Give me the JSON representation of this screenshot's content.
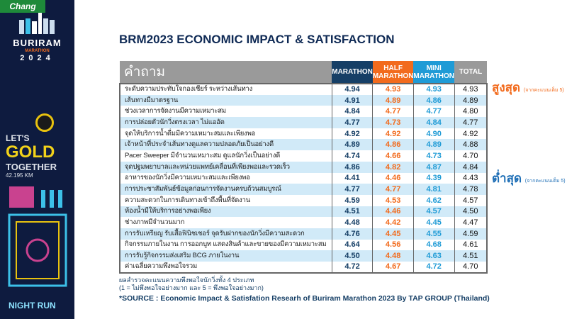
{
  "sidebar": {
    "brand": "BURIRAM",
    "brand_sub": "MARATHON",
    "year": "2024",
    "sponsor": "Chang",
    "slogan1": "LET'S",
    "slogan2": "GOLD",
    "slogan3": "TOGETHER",
    "distance": "42.195 KM",
    "night": "NIGHT RUN"
  },
  "title": "BRM2023 ECONOMIC IMPACT & SATISFACTION",
  "table": {
    "headers": {
      "question": "คำถาม",
      "marathon": "MARATHON",
      "half": "HALF MARATHON",
      "mini": "MINI MARATHON",
      "total": "TOTAL"
    },
    "rows": [
      {
        "q": "ระดับความประทับใจกองเชียร์ ระหว่างเส้นทาง",
        "m": "4.94",
        "h": "4.93",
        "n": "4.93",
        "t": "4.93"
      },
      {
        "q": "เส้นทางมีมาตรฐาน",
        "m": "4.91",
        "h": "4.89",
        "n": "4.86",
        "t": "4.89"
      },
      {
        "q": "ช่วงเวลาการจัดงานมีความเหมาะสม",
        "m": "4.84",
        "h": "4.77",
        "n": "4.77",
        "t": "4.80"
      },
      {
        "q": "การปล่อยตัวนักวิ่งตรงเวลา ไม่แออัด",
        "m": "4.77",
        "h": "4.73",
        "n": "4.84",
        "t": "4.77"
      },
      {
        "q": "จุดให้บริการน้ำดื่มมีความเหมาะสมและเพียงพอ",
        "m": "4.92",
        "h": "4.92",
        "n": "4.90",
        "t": "4.92"
      },
      {
        "q": "เจ้าหน้าที่ประจำเส้นทางดูแลความปลอดภัยเป็นอย่างดี",
        "m": "4.89",
        "h": "4.86",
        "n": "4.89",
        "t": "4.88"
      },
      {
        "q": "Pacer Sweeper มีจำนวนเหมาะสม ดูแลนักวิ่งเป็นอย่างดี",
        "m": "4.74",
        "h": "4.66",
        "n": "4.73",
        "t": "4.70"
      },
      {
        "q": "จุดปฐมพยาบาลและหน่วยแพทย์เคลื่อนที่เพียงพอและรวดเร็ว",
        "m": "4.86",
        "h": "4.82",
        "n": "4.87",
        "t": "4.84"
      },
      {
        "q": "อาหารของนักวิ่งมีความเหมาะสมและเพียงพอ",
        "m": "4.41",
        "h": "4.46",
        "n": "4.39",
        "t": "4.43"
      },
      {
        "q": "การประชาสัมพันธ์ข้อมูลก่อนการจัดงานครบถ้วนสมบูรณ์",
        "m": "4.77",
        "h": "4.77",
        "n": "4.81",
        "t": "4.78"
      },
      {
        "q": "ความสะดวกในการเดินทางเข้าถึงพื้นที่จัดงาน",
        "m": "4.59",
        "h": "4.53",
        "n": "4.62",
        "t": "4.57"
      },
      {
        "q": "ห้องน้ำมีให้บริการอย่างพอเพียง",
        "m": "4.51",
        "h": "4.46",
        "n": "4.57",
        "t": "4.50"
      },
      {
        "q": "ช่างภาพมีจำนวนมาก",
        "m": "4.48",
        "h": "4.42",
        "n": "4.45",
        "t": "4.47"
      },
      {
        "q": "การรับเหรียญ รับเสื้อฟินิชเชอร์ จุดรับฝากของนักวิ่งมีความสะดวก",
        "m": "4.76",
        "h": "4.45",
        "n": "4.55",
        "t": "4.59"
      },
      {
        "q": "กิจกรรมภายในงาน การออกบูท แสดงสินค้าและขายของมีความเหมาะสม",
        "m": "4.64",
        "h": "4.56",
        "n": "4.68",
        "t": "4.61"
      },
      {
        "q": "การรับรู้กิจกรรมส่งเสริม BCG ภายในงาน",
        "m": "4.50",
        "h": "4.48",
        "n": "4.63",
        "t": "4.51"
      },
      {
        "q": "ค่าเฉลี่ยความพึงพอใจรวม",
        "m": "4.72",
        "h": "4.67",
        "n": "4.72",
        "t": "4.70"
      }
    ]
  },
  "highest": {
    "label": "สูงสุด",
    "note": "(จากคะแนนเต็ม 5)"
  },
  "lowest": {
    "label": "ต่ำสุด",
    "note": "(จากคะแนนเต็ม 5)"
  },
  "note1": "ผลสำรวจคะแนนความพึงพอใจนักวิ่งทั้ง 4 ประเภท",
  "note2": "(1 = ไม่พึงพอใจอย่างมาก และ 5 = พึงพอใจอย่างมาก)",
  "source": "*SOURCE : Economic Impact & Satisfation Researh of Buriram Marathon 2023 By TAP GROUP (Thailand)"
}
